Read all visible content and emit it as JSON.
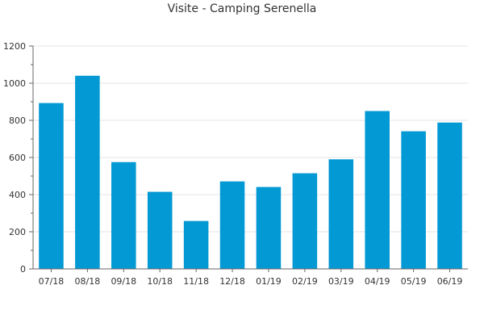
{
  "chart_data": {
    "type": "bar",
    "title": "Visite - Camping Serenella",
    "xlabel": "",
    "ylabel": "",
    "categories": [
      "07/18",
      "08/18",
      "09/18",
      "10/18",
      "11/18",
      "12/18",
      "01/19",
      "02/19",
      "03/19",
      "04/19",
      "05/19",
      "06/19"
    ],
    "values": [
      893,
      1040,
      575,
      415,
      258,
      471,
      441,
      515,
      590,
      850,
      741,
      788
    ],
    "ylim": [
      0,
      1200
    ],
    "yticks": [
      0,
      200,
      400,
      600,
      800,
      1000,
      1200
    ],
    "grid": true,
    "legend": "none",
    "colors": {
      "bar": "#0399d4",
      "grid": "#e6e6e6",
      "axis": "#666666",
      "text": "#333333"
    }
  }
}
